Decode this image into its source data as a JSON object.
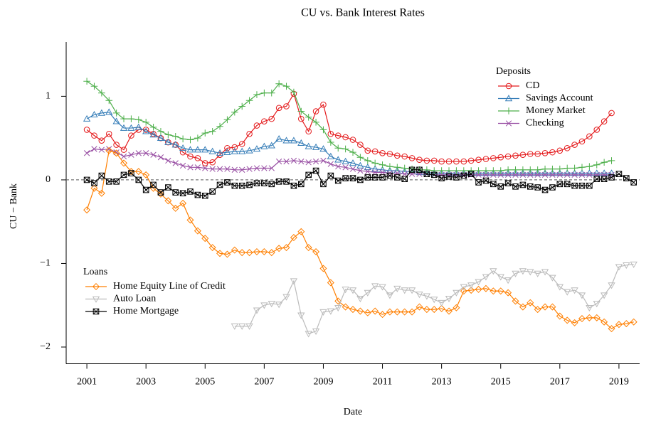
{
  "chart_data": {
    "type": "line",
    "title": "CU vs. Bank Interest Rates",
    "x_label": "Date",
    "y_label": "CU − Bank",
    "xlim": [
      2000.3,
      2019.7
    ],
    "ylim": [
      -2.2,
      1.65
    ],
    "xticks": [
      2001,
      2003,
      2005,
      2007,
      2009,
      2011,
      2013,
      2015,
      2017,
      2019
    ],
    "yticks": [
      {
        "value": -2,
        "label": "−2"
      },
      {
        "value": -1,
        "label": "−1"
      },
      0,
      1
    ],
    "reference_line": 0,
    "x": [
      2001,
      2001.25,
      2001.5,
      2001.75,
      2002,
      2002.25,
      2002.5,
      2002.75,
      2003,
      2003.25,
      2003.5,
      2003.75,
      2004,
      2004.25,
      2004.5,
      2004.75,
      2005,
      2005.25,
      2005.5,
      2005.75,
      2006,
      2006.25,
      2006.5,
      2006.75,
      2007,
      2007.25,
      2007.5,
      2007.75,
      2008,
      2008.25,
      2008.5,
      2008.75,
      2009,
      2009.25,
      2009.5,
      2009.75,
      2010,
      2010.25,
      2010.5,
      2010.75,
      2011,
      2011.25,
      2011.5,
      2011.75,
      2012,
      2012.25,
      2012.5,
      2012.75,
      2013,
      2013.25,
      2013.5,
      2013.75,
      2014,
      2014.25,
      2014.5,
      2014.75,
      2015,
      2015.25,
      2015.5,
      2015.75,
      2016,
      2016.25,
      2016.5,
      2016.75,
      2017,
      2017.25,
      2017.5,
      2017.75,
      2018,
      2018.25,
      2018.5,
      2018.75,
      2019,
      2019.25,
      2019.5
    ],
    "series": [
      {
        "name": "CD",
        "group": "Deposits",
        "color": "#e41a1c",
        "marker": "circle",
        "values": [
          0.6,
          0.53,
          0.47,
          0.55,
          0.42,
          0.36,
          0.53,
          0.6,
          0.6,
          0.55,
          0.5,
          0.45,
          0.42,
          0.33,
          0.28,
          0.26,
          0.2,
          0.21,
          0.3,
          0.38,
          0.39,
          0.43,
          0.55,
          0.65,
          0.7,
          0.73,
          0.86,
          0.88,
          1.03,
          0.73,
          0.58,
          0.82,
          0.9,
          0.55,
          0.53,
          0.51,
          0.48,
          0.42,
          0.35,
          0.34,
          0.32,
          0.31,
          0.29,
          0.28,
          0.26,
          0.24,
          0.23,
          0.23,
          0.22,
          0.22,
          0.22,
          0.22,
          0.23,
          0.24,
          0.25,
          0.26,
          0.27,
          0.28,
          0.29,
          0.3,
          0.31,
          0.31,
          0.32,
          0.33,
          0.35,
          0.38,
          0.42,
          0.46,
          0.52,
          0.6,
          0.7,
          0.8,
          null,
          null,
          null
        ]
      },
      {
        "name": "Savings Account",
        "group": "Deposits",
        "color": "#377eb8",
        "marker": "triangle",
        "values": [
          0.73,
          0.78,
          0.8,
          0.81,
          0.7,
          0.62,
          0.62,
          0.63,
          0.58,
          0.54,
          0.5,
          0.45,
          0.42,
          0.38,
          0.36,
          0.36,
          0.36,
          0.34,
          0.32,
          0.33,
          0.34,
          0.34,
          0.35,
          0.37,
          0.4,
          0.41,
          0.49,
          0.47,
          0.47,
          0.44,
          0.4,
          0.39,
          0.37,
          0.28,
          0.24,
          0.22,
          0.2,
          0.17,
          0.15,
          0.13,
          0.12,
          0.11,
          0.11,
          0.1,
          0.1,
          0.09,
          0.09,
          0.08,
          0.08,
          0.08,
          0.08,
          0.08,
          0.08,
          0.08,
          0.08,
          0.08,
          0.08,
          0.08,
          0.08,
          0.08,
          0.08,
          0.08,
          0.08,
          0.08,
          0.08,
          0.08,
          0.08,
          0.08,
          0.08,
          0.08,
          0.08,
          0.08,
          null,
          null,
          null
        ]
      },
      {
        "name": "Money Market",
        "group": "Deposits",
        "color": "#4daf4a",
        "marker": "plus",
        "values": [
          1.18,
          1.12,
          1.04,
          0.95,
          0.8,
          0.73,
          0.73,
          0.72,
          0.69,
          0.63,
          0.58,
          0.54,
          0.52,
          0.49,
          0.48,
          0.5,
          0.56,
          0.58,
          0.64,
          0.72,
          0.81,
          0.88,
          0.95,
          1.02,
          1.04,
          1.04,
          1.15,
          1.12,
          1.05,
          0.82,
          0.75,
          0.69,
          0.6,
          0.45,
          0.38,
          0.37,
          0.33,
          0.27,
          0.23,
          0.2,
          0.18,
          0.16,
          0.15,
          0.14,
          0.13,
          0.12,
          0.12,
          0.11,
          0.11,
          0.11,
          0.11,
          0.11,
          0.11,
          0.11,
          0.11,
          0.11,
          0.11,
          0.12,
          0.12,
          0.12,
          0.12,
          0.12,
          0.13,
          0.13,
          0.13,
          0.14,
          0.14,
          0.15,
          0.16,
          0.18,
          0.21,
          0.23,
          null,
          null,
          null
        ]
      },
      {
        "name": "Checking",
        "group": "Deposits",
        "color": "#984ea3",
        "marker": "x",
        "values": [
          0.32,
          0.37,
          0.36,
          0.37,
          0.33,
          0.28,
          0.3,
          0.32,
          0.32,
          0.3,
          0.27,
          0.23,
          0.2,
          0.17,
          0.15,
          0.15,
          0.14,
          0.13,
          0.13,
          0.13,
          0.12,
          0.12,
          0.13,
          0.14,
          0.14,
          0.14,
          0.22,
          0.22,
          0.23,
          0.22,
          0.21,
          0.22,
          0.23,
          0.19,
          0.16,
          0.15,
          0.13,
          0.11,
          0.1,
          0.09,
          0.09,
          0.08,
          0.08,
          0.07,
          0.07,
          0.07,
          0.07,
          0.06,
          0.06,
          0.06,
          0.06,
          0.06,
          0.06,
          0.06,
          0.06,
          0.06,
          0.06,
          0.06,
          0.06,
          0.06,
          0.06,
          0.06,
          0.06,
          0.06,
          0.06,
          0.06,
          0.06,
          0.06,
          0.06,
          0.06,
          0.06,
          0.06,
          null,
          null,
          null
        ]
      },
      {
        "name": "Home Equity Line of Credit",
        "group": "Loans",
        "color": "#ff7f00",
        "marker": "diamond",
        "values": [
          -0.36,
          -0.1,
          -0.16,
          0.35,
          0.32,
          0.2,
          0.1,
          0.1,
          0.06,
          -0.1,
          -0.17,
          -0.25,
          -0.34,
          -0.28,
          -0.48,
          -0.61,
          -0.7,
          -0.81,
          -0.88,
          -0.89,
          -0.84,
          -0.87,
          -0.87,
          -0.86,
          -0.86,
          -0.87,
          -0.82,
          -0.81,
          -0.69,
          -0.62,
          -0.81,
          -0.86,
          -1.06,
          -1.23,
          -1.45,
          -1.52,
          -1.55,
          -1.57,
          -1.59,
          -1.57,
          -1.61,
          -1.58,
          -1.58,
          -1.58,
          -1.58,
          -1.52,
          -1.55,
          -1.55,
          -1.54,
          -1.57,
          -1.53,
          -1.33,
          -1.32,
          -1.31,
          -1.3,
          -1.33,
          -1.33,
          -1.35,
          -1.45,
          -1.52,
          -1.47,
          -1.55,
          -1.52,
          -1.52,
          -1.63,
          -1.68,
          -1.71,
          -1.66,
          -1.65,
          -1.65,
          -1.7,
          -1.78,
          -1.73,
          -1.72,
          -1.7
        ]
      },
      {
        "name": "Auto Loan",
        "group": "Loans",
        "color": "#bbbbbb",
        "marker": "triangle-down",
        "values": [
          null,
          null,
          null,
          null,
          null,
          null,
          null,
          null,
          null,
          null,
          null,
          null,
          null,
          null,
          null,
          null,
          null,
          null,
          null,
          null,
          -1.75,
          -1.75,
          -1.75,
          -1.56,
          -1.5,
          -1.48,
          -1.49,
          -1.4,
          -1.21,
          -1.62,
          -1.84,
          -1.81,
          -1.58,
          -1.57,
          -1.53,
          -1.31,
          -1.32,
          -1.42,
          -1.35,
          -1.27,
          -1.28,
          -1.38,
          -1.3,
          -1.32,
          -1.32,
          -1.37,
          -1.39,
          -1.43,
          -1.47,
          -1.42,
          -1.35,
          -1.28,
          -1.26,
          -1.22,
          -1.16,
          -1.09,
          -1.16,
          -1.2,
          -1.12,
          -1.09,
          -1.1,
          -1.12,
          -1.1,
          -1.17,
          -1.28,
          -1.34,
          -1.32,
          -1.38,
          -1.53,
          -1.48,
          -1.38,
          -1.26,
          -1.04,
          -1.02,
          -1.01
        ]
      },
      {
        "name": "Home Mortgage",
        "group": "Loans",
        "color": "#000000",
        "marker": "boxed-x",
        "values": [
          0,
          -0.04,
          0.05,
          -0.02,
          -0.02,
          0.06,
          0.08,
          0,
          -0.12,
          -0.06,
          -0.15,
          -0.09,
          -0.15,
          -0.16,
          -0.14,
          -0.18,
          -0.19,
          -0.14,
          -0.06,
          -0.03,
          -0.07,
          -0.07,
          -0.06,
          -0.04,
          -0.04,
          -0.05,
          -0.02,
          -0.02,
          -0.07,
          -0.05,
          0.06,
          0.11,
          -0.05,
          0.05,
          -0.01,
          0.02,
          0.02,
          0,
          0.03,
          0.03,
          0.03,
          0.05,
          0.03,
          0.01,
          0.12,
          0.12,
          0.07,
          0.06,
          0.02,
          0.04,
          0.03,
          0.05,
          0.07,
          -0.03,
          -0.01,
          -0.05,
          -0.08,
          -0.04,
          -0.08,
          -0.06,
          -0.08,
          -0.09,
          -0.12,
          -0.09,
          -0.05,
          -0.05,
          -0.07,
          -0.07,
          -0.07,
          0.01,
          0.01,
          0.03,
          0.07,
          0.02,
          -0.03
        ]
      }
    ]
  }
}
